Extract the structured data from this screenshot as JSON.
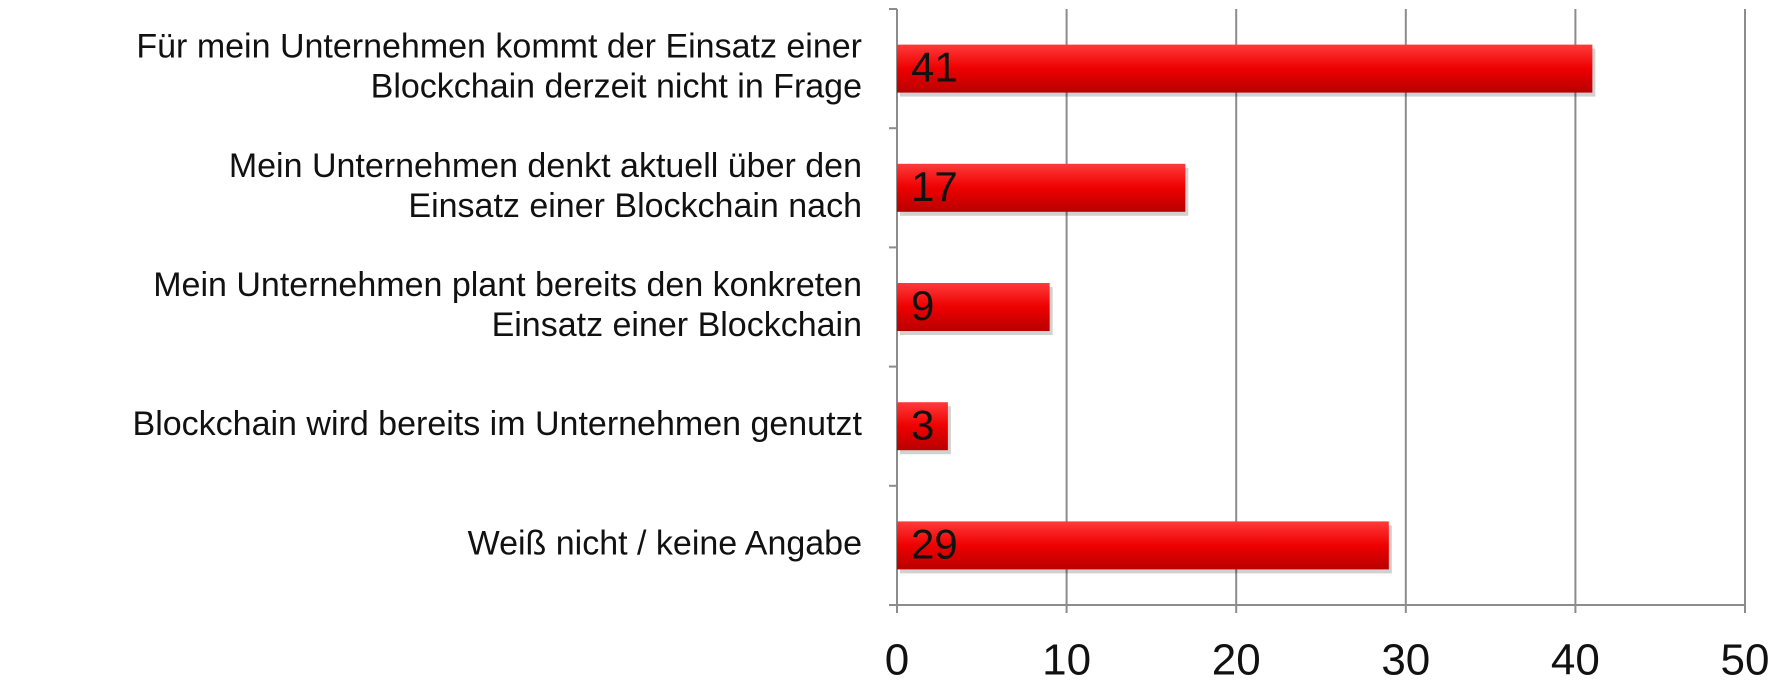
{
  "chart_data": {
    "type": "bar",
    "orientation": "horizontal",
    "categories": [
      "Für mein Unternehmen kommt der Einsatz einer\nBlockchain derzeit nicht in Frage",
      "Mein Unternehmen denkt aktuell über den\nEinsatz einer Blockchain nach",
      "Mein Unternehmen plant bereits den konkreten\nEinsatz einer Blockchain",
      "Blockchain wird bereits im Unternehmen genutzt",
      "Weiß nicht / keine Angabe"
    ],
    "values": [
      41,
      17,
      9,
      3,
      29
    ],
    "color": "#e60000",
    "xlim": [
      0,
      50
    ],
    "xticks": [
      0,
      10,
      20,
      30,
      40,
      50
    ],
    "grid": true
  }
}
